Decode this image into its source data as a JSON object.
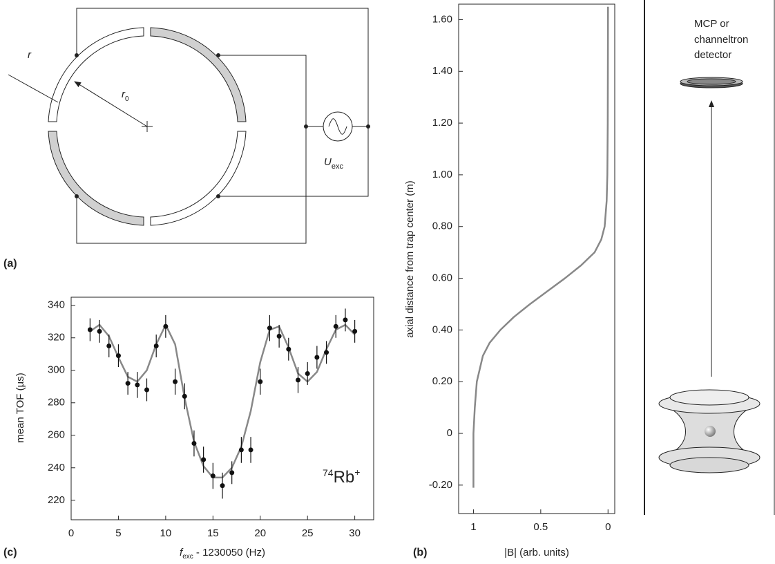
{
  "diagram": {
    "panel_a": "(a)",
    "panel_b": "(b)",
    "panel_c": "(c)",
    "r": "r",
    "r0_main": "r",
    "r0_sub": "0",
    "u_main": "U",
    "u_sub": "exc",
    "detector": [
      "MCP or",
      "channeltron",
      "detector"
    ]
  },
  "chart_data": [
    {
      "type": "scatter",
      "ylabel": "mean TOF  (µs)",
      "xlabel": "f",
      "xlabel_sub": "exc",
      "xlabel_rest": " - 1230050  (Hz)",
      "annotation_sup": "74",
      "annotation_main": "Rb",
      "annotation_charge": "+",
      "x": [
        2,
        3,
        4,
        5,
        6,
        7,
        8,
        9,
        10,
        11,
        12,
        13,
        14,
        15,
        16,
        17,
        18,
        19,
        20,
        21,
        22,
        23,
        24,
        25,
        26,
        27,
        28,
        29,
        30
      ],
      "series": [
        {
          "color": "#111111",
          "values": [
            325,
            324,
            315,
            309,
            292,
            291,
            288,
            315,
            327,
            293,
            284,
            255,
            245,
            235,
            229,
            237,
            251,
            251,
            293,
            326,
            321,
            313,
            294,
            298,
            308,
            311,
            327,
            331,
            324
          ],
          "errors": [
            7,
            7,
            7,
            7,
            7,
            8,
            7,
            7,
            7,
            8,
            8,
            8,
            8,
            8,
            8,
            7,
            8,
            8,
            8,
            8,
            7,
            7,
            8,
            7,
            7,
            7,
            7,
            7,
            7
          ]
        }
      ],
      "fit": {
        "color": "#888888",
        "x": [
          2,
          3,
          4,
          5,
          6,
          7,
          8,
          9,
          10,
          11,
          12,
          13,
          14,
          15,
          16,
          17,
          18,
          19,
          20,
          21,
          22,
          23,
          24,
          25,
          26,
          27,
          28,
          29,
          30
        ],
        "values": [
          324,
          328,
          321,
          308,
          296,
          293,
          300,
          316,
          328,
          316,
          283,
          256,
          241,
          234,
          234,
          240,
          253,
          275,
          305,
          325,
          327,
          314,
          298,
          293,
          299,
          313,
          325,
          328,
          322
        ]
      },
      "xlim": [
        0,
        32
      ],
      "ylim": [
        208,
        345
      ],
      "xticks": [
        0,
        5,
        10,
        15,
        20,
        25,
        30
      ],
      "yticks": [
        220,
        240,
        260,
        280,
        300,
        320,
        340
      ]
    },
    {
      "type": "line",
      "ylabel": "axial distance from trap center  (m)",
      "xlabel": "|B|  (arb. units)",
      "color": "#888888",
      "x": [
        1,
        1,
        0.99,
        0.975,
        0.93,
        0.88,
        0.8,
        0.7,
        0.58,
        0.45,
        0.32,
        0.2,
        0.1,
        0.05,
        0.025,
        0.01,
        0.005,
        0.002,
        0
      ],
      "values": [
        -0.21,
        0,
        0.1,
        0.2,
        0.3,
        0.35,
        0.4,
        0.45,
        0.5,
        0.55,
        0.6,
        0.65,
        0.7,
        0.75,
        0.8,
        0.9,
        1.0,
        1.2,
        1.65
      ],
      "xlim": [
        1.11,
        -0.05
      ],
      "ylim": [
        -0.31,
        1.66
      ],
      "xticks": [
        1,
        0.5,
        0
      ],
      "yticks": [
        {
          "value": -0.2,
          "label": "-0.20"
        },
        0,
        {
          "value": 0.2,
          "label": "0.20"
        },
        {
          "value": 0.4,
          "label": "0.40"
        },
        {
          "value": 0.6,
          "label": "0.60"
        },
        {
          "value": 0.8,
          "label": "0.80"
        },
        {
          "value": 1.0,
          "label": "1.00"
        },
        {
          "value": 1.2,
          "label": "1.20"
        },
        {
          "value": 1.4,
          "label": "1.40"
        },
        {
          "value": 1.6,
          "label": "1.60"
        }
      ]
    }
  ]
}
